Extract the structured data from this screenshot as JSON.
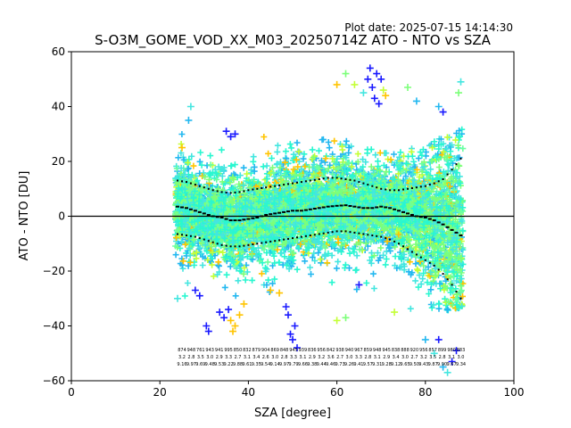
{
  "chart_data": {
    "type": "scatter",
    "title": "S-O3M_GOME_VOD_XX_M03_20250714Z ATO - NTO vs SZA",
    "plot_date": "Plot date: 2025-07-15 14:14:30",
    "xlabel": "SZA [degree]",
    "ylabel": "ATO - NTO [DU]",
    "xlim": [
      0,
      100
    ],
    "ylim": [
      -60,
      60
    ],
    "xticks": [
      "0",
      "20",
      "40",
      "60",
      "80",
      "100"
    ],
    "yticks": [
      "−60",
      "−40",
      "−20",
      "0",
      "20",
      "40",
      "60"
    ],
    "grid": false,
    "legend": "none",
    "zero_line": 0,
    "scatter_range_x": [
      23.5,
      88.5
    ],
    "scatter_colors": [
      "#7cff79",
      "#29f7d0",
      "#6bffa0",
      "#23b8f0",
      "#c4ff36",
      "#ffc400",
      "#1a1aff",
      "#44e6e0"
    ],
    "series": [
      {
        "role": "mean",
        "x": [
          24,
          26,
          28,
          30,
          32,
          34,
          36,
          38,
          40,
          42,
          44,
          46,
          48,
          50,
          52,
          54,
          56,
          58,
          60,
          62,
          64,
          66,
          68,
          70,
          72,
          74,
          76,
          78,
          80,
          82,
          84,
          86,
          88
        ],
        "values": [
          3.5,
          3,
          2,
          1,
          0,
          -0.5,
          -1.5,
          -1.5,
          -1,
          -0.5,
          0.5,
          1,
          1.5,
          2,
          2,
          2.5,
          3,
          3.5,
          3.8,
          4,
          3.5,
          3,
          3,
          3.5,
          3,
          2,
          1,
          0,
          -0.5,
          -1.5,
          -3,
          -5,
          -7
        ]
      },
      {
        "role": "upper-std",
        "x": [
          24,
          26,
          28,
          30,
          32,
          34,
          36,
          38,
          40,
          42,
          44,
          46,
          48,
          50,
          52,
          54,
          56,
          58,
          60,
          62,
          64,
          66,
          68,
          70,
          72,
          74,
          76,
          78,
          80,
          82,
          84,
          86,
          88
        ],
        "values": [
          13,
          12.5,
          11.5,
          10.5,
          9.5,
          8.8,
          8.5,
          8.8,
          9.5,
          10,
          10.5,
          11,
          11.5,
          12,
          12.5,
          13,
          13.5,
          14,
          14,
          13.5,
          13,
          12,
          11,
          10,
          9.5,
          9.5,
          10,
          10.5,
          11,
          12,
          13.5,
          17,
          21
        ]
      },
      {
        "role": "lower-std",
        "x": [
          24,
          26,
          28,
          30,
          32,
          34,
          36,
          38,
          40,
          42,
          44,
          46,
          48,
          50,
          52,
          54,
          56,
          58,
          60,
          62,
          64,
          66,
          68,
          70,
          72,
          74,
          76,
          78,
          80,
          82,
          84,
          86,
          88
        ],
        "values": [
          -6.5,
          -7,
          -7.5,
          -8.5,
          -9.5,
          -10.5,
          -11,
          -11,
          -10.5,
          -10,
          -9.5,
          -9,
          -8.5,
          -8,
          -7.5,
          -7,
          -6.5,
          -6,
          -5.5,
          -5.5,
          -6,
          -6.5,
          -7,
          -7.5,
          -8.5,
          -10,
          -12,
          -14,
          -16,
          -18,
          -21,
          -25,
          -30
        ]
      }
    ],
    "outliers": [
      {
        "x": 30.5,
        "y": -40,
        "c": "#1a1aff"
      },
      {
        "x": 31,
        "y": -42,
        "c": "#1a1aff"
      },
      {
        "x": 33.5,
        "y": -35,
        "c": "#1a1aff"
      },
      {
        "x": 34.5,
        "y": -37,
        "c": "#1a1aff"
      },
      {
        "x": 35.5,
        "y": -34,
        "c": "#1a1aff"
      },
      {
        "x": 36,
        "y": -38,
        "c": "#ffc400"
      },
      {
        "x": 37,
        "y": -40,
        "c": "#ffc400"
      },
      {
        "x": 36.5,
        "y": -42,
        "c": "#ffc400"
      },
      {
        "x": 38,
        "y": -36,
        "c": "#ffc400"
      },
      {
        "x": 39,
        "y": -32,
        "c": "#ffc400"
      },
      {
        "x": 28,
        "y": -27,
        "c": "#1a1aff"
      },
      {
        "x": 29,
        "y": -29,
        "c": "#1a1aff"
      },
      {
        "x": 48.5,
        "y": -33,
        "c": "#1a1aff"
      },
      {
        "x": 49,
        "y": -36,
        "c": "#1a1aff"
      },
      {
        "x": 49.5,
        "y": -43,
        "c": "#1a1aff"
      },
      {
        "x": 50,
        "y": -45,
        "c": "#1a1aff"
      },
      {
        "x": 50.5,
        "y": -40,
        "c": "#1a1aff"
      },
      {
        "x": 51,
        "y": -48,
        "c": "#1a1aff"
      },
      {
        "x": 35,
        "y": 31,
        "c": "#1a1aff"
      },
      {
        "x": 36,
        "y": 29,
        "c": "#1a1aff"
      },
      {
        "x": 37,
        "y": 30,
        "c": "#1a1aff"
      },
      {
        "x": 27,
        "y": 40,
        "c": "#44e6e0"
      },
      {
        "x": 26.5,
        "y": 35,
        "c": "#23b8f0"
      },
      {
        "x": 67.5,
        "y": 54,
        "c": "#1a1aff"
      },
      {
        "x": 67,
        "y": 50,
        "c": "#1a1aff"
      },
      {
        "x": 68,
        "y": 47,
        "c": "#1a1aff"
      },
      {
        "x": 69,
        "y": 52,
        "c": "#1a1aff"
      },
      {
        "x": 70,
        "y": 50,
        "c": "#1a1aff"
      },
      {
        "x": 68.5,
        "y": 43,
        "c": "#1a1aff"
      },
      {
        "x": 69.5,
        "y": 41,
        "c": "#1a1aff"
      },
      {
        "x": 71,
        "y": 44,
        "c": "#ffc400"
      },
      {
        "x": 70.5,
        "y": 46,
        "c": "#c4ff36"
      },
      {
        "x": 66,
        "y": 45,
        "c": "#44e6e0"
      },
      {
        "x": 62,
        "y": 52,
        "c": "#7cff79"
      },
      {
        "x": 64,
        "y": 48,
        "c": "#c4ff36"
      },
      {
        "x": 60,
        "y": 48,
        "c": "#ffc400"
      },
      {
        "x": 76,
        "y": 47,
        "c": "#7cff79"
      },
      {
        "x": 78,
        "y": 42,
        "c": "#23b8f0"
      },
      {
        "x": 88,
        "y": 49,
        "c": "#44e6e0"
      },
      {
        "x": 87.5,
        "y": 45,
        "c": "#7cff79"
      },
      {
        "x": 83,
        "y": 40,
        "c": "#23b8f0"
      },
      {
        "x": 84,
        "y": 38,
        "c": "#1a1aff"
      },
      {
        "x": 65,
        "y": -25,
        "c": "#1a1aff"
      },
      {
        "x": 60,
        "y": -38,
        "c": "#c4ff36"
      },
      {
        "x": 62,
        "y": -37,
        "c": "#7cff79"
      },
      {
        "x": 73,
        "y": -35,
        "c": "#c4ff36"
      },
      {
        "x": 80,
        "y": -45,
        "c": "#23b8f0"
      },
      {
        "x": 82,
        "y": -50,
        "c": "#44e6e0"
      },
      {
        "x": 84,
        "y": -55,
        "c": "#23b8f0"
      },
      {
        "x": 85,
        "y": -57,
        "c": "#44e6e0"
      },
      {
        "x": 86,
        "y": -53,
        "c": "#1a1aff"
      },
      {
        "x": 87,
        "y": -49,
        "c": "#1a1aff"
      },
      {
        "x": 83,
        "y": -45,
        "c": "#1a1aff"
      },
      {
        "x": 24,
        "y": -30,
        "c": "#44e6e0"
      },
      {
        "x": 25,
        "y": 25,
        "c": "#ffc400"
      },
      {
        "x": 47,
        "y": -28,
        "c": "#ffc400"
      },
      {
        "x": 45,
        "y": -27,
        "c": "#ffc400"
      }
    ],
    "counts_rows": [
      [
        "874",
        "948",
        "761",
        "943",
        "941",
        "995",
        "850",
        "832",
        "879",
        "904",
        "869",
        "848",
        "945",
        "939",
        "836",
        "956",
        "842",
        "938",
        "940",
        "967",
        "859",
        "948",
        "945",
        "838",
        "888",
        "920",
        "956",
        "857",
        "899",
        "980",
        "883"
      ],
      [
        "3.2",
        "2.8",
        "3.5",
        "3.0",
        "2.9",
        "3.3",
        "2.7",
        "3.1",
        "3.4",
        "2.6",
        "3.0",
        "2.8",
        "3.3",
        "3.1",
        "2.9",
        "3.2",
        "3.6",
        "2.7",
        "3.0",
        "3.3",
        "2.8",
        "3.1",
        "2.9",
        "3.4",
        "3.0",
        "2.7",
        "3.2",
        "3.5",
        "2.8",
        "3.1",
        "3.0"
      ],
      [
        "9.16",
        "9.97",
        "9.69",
        "9.48",
        "9.53",
        "9.22",
        "9.88",
        "9.61",
        "9.35",
        "9.54",
        "9.14",
        "9.97",
        "9.79",
        "9.66",
        "9.38",
        "9.44",
        "9.46",
        "9.73",
        "9.26",
        "9.41",
        "9.57",
        "9.31",
        "9.28",
        "9.12",
        "9.65",
        "9.50",
        "9.43",
        "9.87",
        "9.90",
        "9.67",
        "9.34"
      ]
    ]
  }
}
